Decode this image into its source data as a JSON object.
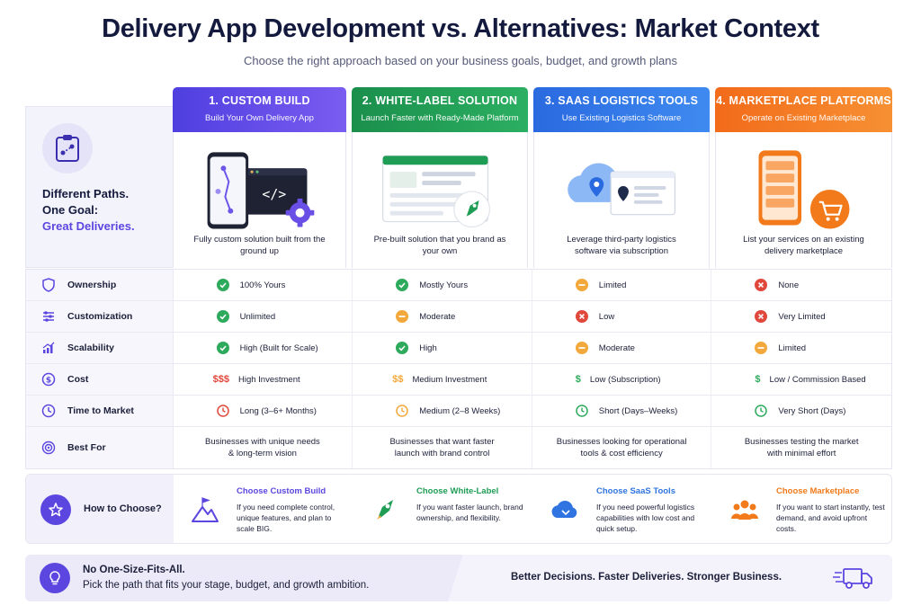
{
  "title": "Delivery App Development vs. Alternatives: Market Context",
  "subtitle": "Choose the right approach based on your business goals, budget, and growth plans",
  "left_panel": {
    "icon": "clipboard-route-icon",
    "line1": "Different Paths.",
    "line2": "One Goal:",
    "line3": "Great Deliveries."
  },
  "colors": {
    "custom": "#5b47e0",
    "white_label": "#1f9d55",
    "saas": "#2f74e0",
    "marketplace": "#f27a1a",
    "check": "#2eaa5c",
    "partial": "#f3a83b",
    "cross": "#e0483c"
  },
  "columns": [
    {
      "title": "1. CUSTOM BUILD",
      "subtitle": "Build Your Own Delivery App",
      "description": "Fully custom solution built from the ground up",
      "illustration": "phone-code-gear-icon"
    },
    {
      "title": "2. WHITE-LABEL SOLUTION",
      "subtitle": "Launch Faster with Ready-Made Platform",
      "description": "Pre-built solution that you brand as your own",
      "illustration": "dashboard-rocket-icon"
    },
    {
      "title": "3. SAAS LOGISTICS TOOLS",
      "subtitle": "Use Existing Logistics Software",
      "description": "Leverage third-party logistics software via subscription",
      "illustration": "cloud-map-icon"
    },
    {
      "title": "4. MARKETPLACE PLATFORMS",
      "subtitle": "Operate on Existing Marketplace",
      "description": "List your services on an existing delivery marketplace",
      "illustration": "phone-cart-icon"
    }
  ],
  "rows": [
    {
      "label": "Ownership",
      "icon": "shield-icon",
      "cells": [
        {
          "status": "check",
          "text": "100% Yours"
        },
        {
          "status": "check",
          "text": "Mostly Yours"
        },
        {
          "status": "partial",
          "text": "Limited"
        },
        {
          "status": "cross",
          "text": "None"
        }
      ]
    },
    {
      "label": "Customization",
      "icon": "sliders-icon",
      "cells": [
        {
          "status": "check",
          "text": "Unlimited"
        },
        {
          "status": "partial",
          "text": "Moderate"
        },
        {
          "status": "cross",
          "text": "Low"
        },
        {
          "status": "cross",
          "text": "Very Limited"
        }
      ]
    },
    {
      "label": "Scalability",
      "icon": "growth-chart-icon",
      "cells": [
        {
          "status": "check",
          "text": "High (Built for Scale)"
        },
        {
          "status": "check",
          "text": "High"
        },
        {
          "status": "partial",
          "text": "Moderate"
        },
        {
          "status": "partial",
          "text": "Limited"
        }
      ]
    },
    {
      "label": "Cost",
      "icon": "dollar-coin-icon",
      "cells": [
        {
          "symbol": "$$$",
          "text": "High Investment"
        },
        {
          "symbol": "$$",
          "text": "Medium Investment"
        },
        {
          "symbol": "$",
          "text": "Low (Subscription)"
        },
        {
          "symbol": "$",
          "text": "Low / Commission Based"
        }
      ]
    },
    {
      "label": "Time to Market",
      "icon": "clock-icon",
      "cells": [
        {
          "text": "Long (3–6+ Months)"
        },
        {
          "text": "Medium (2–8 Weeks)"
        },
        {
          "text": "Short (Days–Weeks)"
        },
        {
          "text": "Very Short (Days)"
        }
      ]
    },
    {
      "label": "Best For",
      "icon": "target-icon",
      "cells": [
        {
          "text": "Businesses with unique needs & long-term vision"
        },
        {
          "text": "Businesses that want faster launch with brand control"
        },
        {
          "text": "Businesses looking for operational tools & cost efficiency"
        },
        {
          "text": "Businesses testing the market with minimal effort"
        }
      ]
    }
  ],
  "how_to_choose": {
    "label": "How to Choose?",
    "options": [
      {
        "title": "Choose Custom Build",
        "text": "If you need complete control, unique features, and plan to scale BIG.",
        "icon": "mountain-flag-icon"
      },
      {
        "title": "Choose White-Label",
        "text": "If you want faster launch, brand ownership, and flexibility.",
        "icon": "rocket-icon"
      },
      {
        "title": "Choose SaaS Tools",
        "text": "If you need powerful logistics capabilities with low cost and quick setup.",
        "icon": "cloud-icon"
      },
      {
        "title": "Choose Marketplace",
        "text": "If you want to start instantly, test demand, and avoid upfront costs.",
        "icon": "people-icon"
      }
    ]
  },
  "footer": {
    "line1": "No One-Size-Fits-All.",
    "line2": "Pick the path that fits your stage, budget, and growth ambition.",
    "tagline": "Better Decisions. Faster Deliveries. Stronger Business."
  }
}
